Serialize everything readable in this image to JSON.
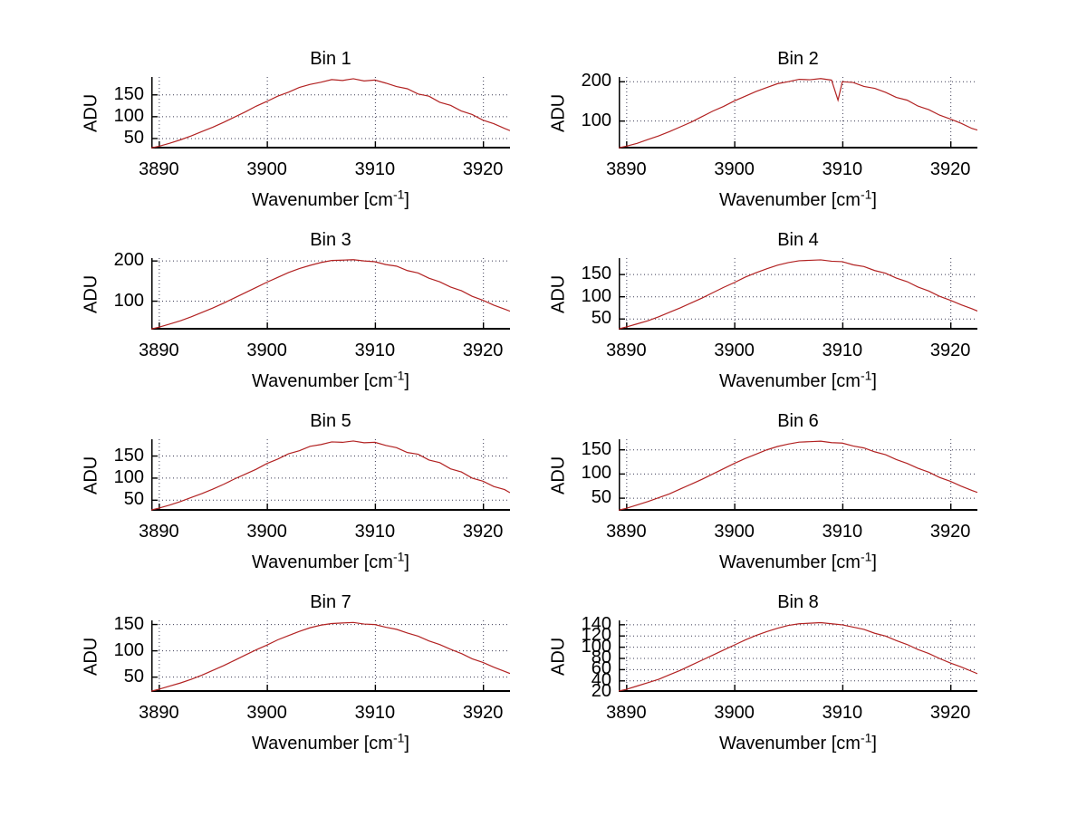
{
  "figure": {
    "background": "#ffffff",
    "line_color": "#b22222",
    "grid_color": "#3b3b55",
    "axis_color": "#000000",
    "text_color": "#000000"
  },
  "labels": {
    "ylabel": "ADU",
    "xlabel_prefix": "Wavenumber [cm",
    "xlabel_sup": "-1",
    "xlabel_suffix": "]"
  },
  "chart_data": [
    {
      "type": "line",
      "title": "Bin 1",
      "xlabel": "Wavenumber [cm^-1]",
      "ylabel": "ADU",
      "grid": true,
      "legend": null,
      "xlim": [
        3889.3,
        3922.5
      ],
      "ylim": [
        26,
        190
      ],
      "xticks": [
        3890,
        3900,
        3910,
        3920
      ],
      "yticks": [
        50,
        100,
        150
      ],
      "x": [
        3889,
        3890,
        3891,
        3892,
        3893,
        3894,
        3895,
        3896,
        3897,
        3898,
        3899,
        3900,
        3901,
        3902,
        3903,
        3904,
        3905,
        3906,
        3907,
        3908,
        3909,
        3910,
        3911,
        3912,
        3913,
        3914,
        3915,
        3916,
        3917,
        3918,
        3919,
        3920,
        3921,
        3922,
        3922.5
      ],
      "y": [
        26,
        31,
        38,
        46,
        55,
        65,
        75,
        86,
        98,
        110,
        123,
        134,
        146,
        155,
        166,
        173,
        178,
        184,
        182,
        186,
        181,
        183,
        176,
        168,
        163,
        151,
        146,
        132,
        125,
        112,
        104,
        91,
        83,
        72,
        67
      ]
    },
    {
      "type": "line",
      "title": "Bin 2",
      "xlabel": "Wavenumber [cm^-1]",
      "ylabel": "ADU",
      "grid": true,
      "legend": null,
      "xlim": [
        3889.3,
        3922.5
      ],
      "ylim": [
        29,
        211
      ],
      "xticks": [
        3890,
        3900,
        3910,
        3920
      ],
      "yticks": [
        100,
        200
      ],
      "x": [
        3889,
        3890,
        3891,
        3892,
        3893,
        3894,
        3895,
        3896,
        3897,
        3898,
        3899,
        3900,
        3901,
        3902,
        3903,
        3904,
        3905,
        3906,
        3907,
        3908,
        3909,
        3909.6,
        3910,
        3911,
        3912,
        3913,
        3914,
        3915,
        3916,
        3917,
        3918,
        3919,
        3920,
        3921,
        3922,
        3922.5
      ],
      "y": [
        29,
        35,
        42,
        52,
        61,
        72,
        84,
        96,
        110,
        124,
        136,
        150,
        162,
        174,
        184,
        194,
        199,
        205,
        204,
        207,
        203,
        152,
        199,
        197,
        187,
        182,
        172,
        159,
        152,
        137,
        128,
        114,
        104,
        93,
        80,
        76
      ]
    },
    {
      "type": "line",
      "title": "Bin 3",
      "xlabel": "Wavenumber [cm^-1]",
      "ylabel": "ADU",
      "grid": true,
      "legend": null,
      "xlim": [
        3889.3,
        3922.5
      ],
      "ylim": [
        28,
        206
      ],
      "xticks": [
        3890,
        3900,
        3910,
        3920
      ],
      "yticks": [
        100,
        200
      ],
      "x": [
        3889,
        3890,
        3891,
        3892,
        3893,
        3894,
        3895,
        3896,
        3897,
        3898,
        3899,
        3900,
        3901,
        3902,
        3903,
        3904,
        3905,
        3906,
        3907,
        3908,
        3909,
        3910,
        3911,
        3912,
        3913,
        3914,
        3915,
        3916,
        3917,
        3918,
        3919,
        3920,
        3921,
        3922,
        3922.5
      ],
      "y": [
        28,
        34,
        42,
        50,
        60,
        71,
        82,
        94,
        107,
        120,
        133,
        146,
        158,
        170,
        180,
        188,
        195,
        200,
        201,
        202,
        199,
        197,
        190,
        186,
        175,
        169,
        156,
        147,
        134,
        125,
        111,
        101,
        89,
        79,
        74
      ]
    },
    {
      "type": "line",
      "title": "Bin 4",
      "xlabel": "Wavenumber [cm^-1]",
      "ylabel": "ADU",
      "grid": true,
      "legend": null,
      "xlim": [
        3889.3,
        3922.5
      ],
      "ylim": [
        25,
        186
      ],
      "xticks": [
        3890,
        3900,
        3910,
        3920
      ],
      "yticks": [
        50,
        100,
        150
      ],
      "x": [
        3889,
        3890,
        3891,
        3892,
        3893,
        3894,
        3895,
        3896,
        3897,
        3898,
        3899,
        3900,
        3901,
        3902,
        3903,
        3904,
        3905,
        3906,
        3907,
        3908,
        3909,
        3910,
        3911,
        3912,
        3913,
        3914,
        3915,
        3916,
        3917,
        3918,
        3919,
        3920,
        3921,
        3922,
        3922.5
      ],
      "y": [
        25,
        31,
        38,
        45,
        54,
        64,
        74,
        85,
        96,
        108,
        120,
        131,
        143,
        153,
        162,
        170,
        176,
        180,
        181,
        182,
        179,
        178,
        171,
        167,
        158,
        152,
        141,
        133,
        121,
        112,
        100,
        91,
        81,
        72,
        67
      ]
    },
    {
      "type": "line",
      "title": "Bin 5",
      "xlabel": "Wavenumber [cm^-1]",
      "ylabel": "ADU",
      "grid": true,
      "legend": null,
      "xlim": [
        3889.3,
        3922.5
      ],
      "ylim": [
        25,
        187
      ],
      "xticks": [
        3890,
        3900,
        3910,
        3920
      ],
      "yticks": [
        50,
        100,
        150
      ],
      "x": [
        3889,
        3890,
        3891,
        3892,
        3893,
        3894,
        3895,
        3896,
        3897,
        3898,
        3899,
        3900,
        3901,
        3902,
        3903,
        3904,
        3905,
        3906,
        3907,
        3908,
        3909,
        3910,
        3911,
        3912,
        3913,
        3914,
        3915,
        3916,
        3917,
        3918,
        3919,
        3920,
        3921,
        3922,
        3922.5
      ],
      "y": [
        25,
        31,
        38,
        46,
        55,
        64,
        74,
        85,
        97,
        108,
        119,
        132,
        142,
        154,
        161,
        171,
        175,
        181,
        180,
        183,
        179,
        180,
        173,
        168,
        157,
        153,
        140,
        134,
        120,
        113,
        99,
        92,
        80,
        73,
        66
      ]
    },
    {
      "type": "line",
      "title": "Bin 6",
      "xlabel": "Wavenumber [cm^-1]",
      "ylabel": "ADU",
      "grid": true,
      "legend": null,
      "xlim": [
        3889.3,
        3922.5
      ],
      "ylim": [
        23,
        171
      ],
      "xticks": [
        3890,
        3900,
        3910,
        3920
      ],
      "yticks": [
        50,
        100,
        150
      ],
      "x": [
        3889,
        3890,
        3891,
        3892,
        3893,
        3894,
        3895,
        3896,
        3897,
        3898,
        3899,
        3900,
        3901,
        3902,
        3903,
        3904,
        3905,
        3906,
        3907,
        3908,
        3909,
        3910,
        3911,
        3912,
        3913,
        3914,
        3915,
        3916,
        3917,
        3918,
        3919,
        3920,
        3921,
        3922,
        3922.5
      ],
      "y": [
        23,
        28,
        35,
        42,
        50,
        58,
        68,
        78,
        88,
        99,
        110,
        121,
        131,
        140,
        149,
        156,
        161,
        165,
        166,
        167,
        164,
        163,
        157,
        153,
        145,
        139,
        129,
        121,
        111,
        103,
        92,
        84,
        74,
        65,
        61
      ]
    },
    {
      "type": "line",
      "title": "Bin 7",
      "xlabel": "Wavenumber [cm^-1]",
      "ylabel": "ADU",
      "grid": true,
      "legend": null,
      "xlim": [
        3889.3,
        3922.5
      ],
      "ylim": [
        21,
        157
      ],
      "xticks": [
        3890,
        3900,
        3910,
        3920
      ],
      "yticks": [
        50,
        100,
        150
      ],
      "x": [
        3889,
        3890,
        3891,
        3892,
        3893,
        3894,
        3895,
        3896,
        3897,
        3898,
        3899,
        3900,
        3901,
        3902,
        3903,
        3904,
        3905,
        3906,
        3907,
        3908,
        3909,
        3910,
        3911,
        3912,
        3913,
        3914,
        3915,
        3916,
        3917,
        3918,
        3919,
        3920,
        3921,
        3922,
        3922.5
      ],
      "y": [
        21,
        26,
        32,
        38,
        45,
        53,
        62,
        71,
        81,
        91,
        101,
        110,
        120,
        128,
        136,
        143,
        148,
        151,
        152,
        153,
        150,
        149,
        144,
        140,
        133,
        127,
        118,
        111,
        102,
        94,
        84,
        77,
        68,
        60,
        56
      ]
    },
    {
      "type": "line",
      "title": "Bin 8",
      "xlabel": "Wavenumber [cm^-1]",
      "ylabel": "ADU",
      "grid": true,
      "legend": null,
      "xlim": [
        3889.3,
        3922.5
      ],
      "ylim": [
        19.5,
        147
      ],
      "xticks": [
        3890,
        3900,
        3910,
        3920
      ],
      "yticks": [
        20,
        40,
        60,
        80,
        100,
        120,
        140
      ],
      "x": [
        3889,
        3890,
        3891,
        3892,
        3893,
        3894,
        3895,
        3896,
        3897,
        3898,
        3899,
        3900,
        3901,
        3902,
        3903,
        3904,
        3905,
        3906,
        3907,
        3908,
        3909,
        3910,
        3911,
        3912,
        3913,
        3914,
        3915,
        3916,
        3917,
        3918,
        3919,
        3920,
        3921,
        3922,
        3922.5
      ],
      "y": [
        20,
        24,
        30,
        36,
        42,
        50,
        58,
        67,
        76,
        85,
        94,
        103,
        112,
        120,
        127,
        133,
        138,
        141,
        142,
        143,
        141,
        139,
        135,
        131,
        124,
        119,
        111,
        104,
        95,
        88,
        79,
        71,
        64,
        56,
        52
      ]
    }
  ]
}
